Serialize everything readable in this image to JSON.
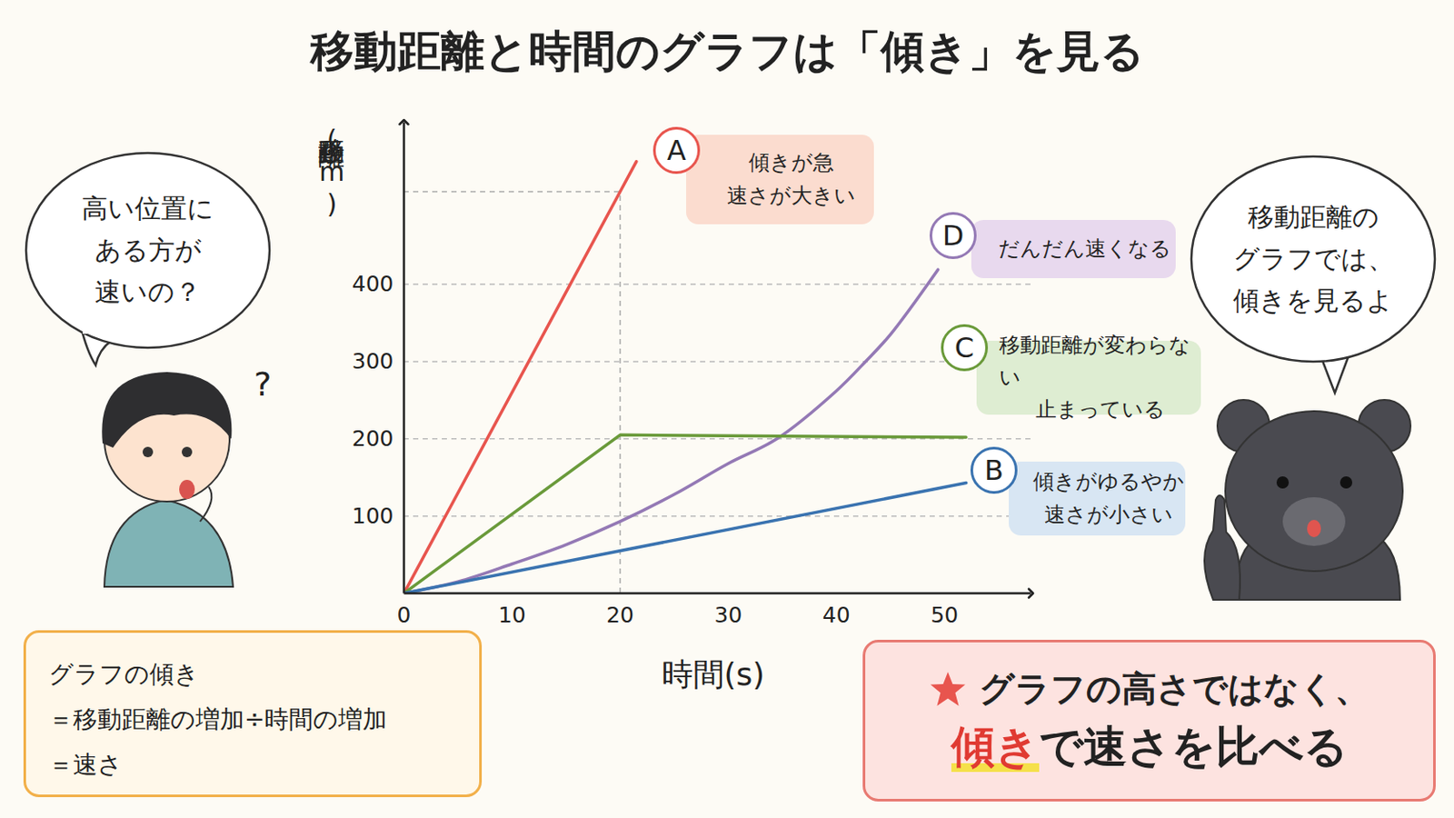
{
  "chart_data": {
    "type": "line",
    "title": "移動距離と時間のグラフは「傾き」を見る",
    "xlabel": "時間(s)",
    "ylabel": "移動距離(m)",
    "xlim": [
      0,
      58
    ],
    "ylim": [
      0,
      610
    ],
    "xticks": [
      0,
      10,
      20,
      30,
      40,
      50
    ],
    "yticks": [
      100,
      200,
      300,
      400
    ],
    "grid": "y",
    "guide": {
      "x": 20,
      "y": 520
    },
    "series": [
      {
        "name": "A",
        "color": "#e8554e",
        "line_style": "solid",
        "x": [
          0,
          20,
          21.5
        ],
        "values": [
          0,
          520,
          559
        ],
        "note": [
          "傾きが急",
          "速さが大きい"
        ],
        "note_color": "#fbdccf"
      },
      {
        "name": "D",
        "color": "#9479b5",
        "line_style": "curved",
        "x": [
          0,
          5,
          10,
          15,
          20,
          25,
          30,
          34.5,
          40,
          42.7,
          45,
          49.4
        ],
        "values": [
          0,
          15,
          38,
          63,
          93,
          128,
          168,
          200,
          262,
          300,
          335,
          419
        ],
        "note": [
          "だんだん速くなる"
        ],
        "note_color": "#e8d9ee"
      },
      {
        "name": "C",
        "color": "#6a9a3a",
        "line_style": "solid",
        "x": [
          0,
          20,
          52
        ],
        "values": [
          0,
          205,
          202
        ],
        "note": [
          "移動距離が変わらない",
          "止まっている"
        ],
        "note_color": "#deedd2"
      },
      {
        "name": "B",
        "color": "#3a73b0",
        "line_style": "solid",
        "x": [
          0,
          52
        ],
        "values": [
          0,
          143
        ],
        "note": [
          "傾きがゆるやか",
          "速さが小さい"
        ],
        "note_color": "#d8e6f3"
      }
    ]
  },
  "page": {
    "boy_bubble": [
      "高い位置に",
      "ある方が",
      "速いの？"
    ],
    "boy_mark": "?",
    "bear_bubble": [
      "移動距離の",
      "グラフでは、",
      "傾きを見るよ"
    ],
    "formula_box": [
      "グラフの傾き",
      "＝移動距離の増加÷時間の増加",
      "＝速さ"
    ],
    "point_box": {
      "line1": "グラフの高さではなく、",
      "emphasis": "傾き",
      "rest": "で速さを比べる"
    }
  }
}
